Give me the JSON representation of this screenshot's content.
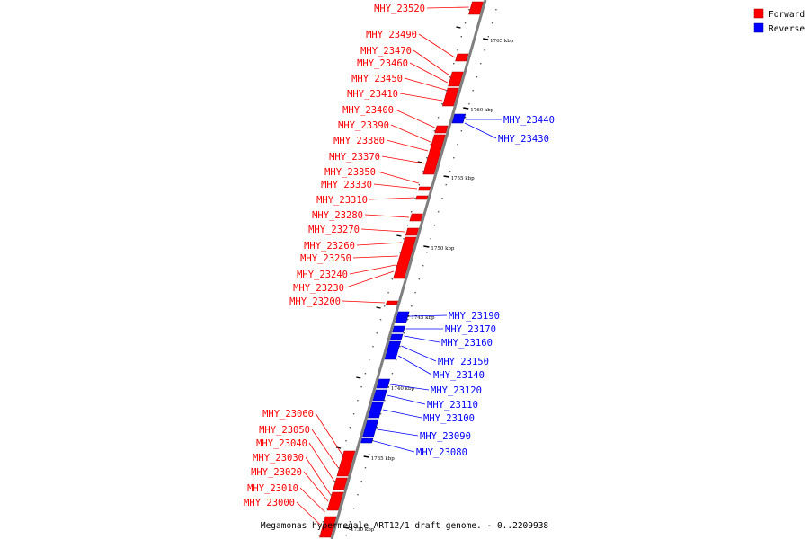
{
  "caption": "Megamonas hypermegale ART12/1 draft genome. - 0..2209938",
  "legend": [
    {
      "label": "Forward",
      "color": "#ff0000"
    },
    {
      "label": "Reverse",
      "color": "#0000ff"
    }
  ],
  "colors": {
    "forward": "#ff0000",
    "reverse": "#0000ff",
    "backbone": "#7f7f7f"
  },
  "ticks": [
    "1765 kbp",
    "1760 kbp",
    "1755 kbp",
    "1750 kbp",
    "1745 kbp",
    "1740 kbp",
    "1735 kbp",
    "1730 kbp"
  ],
  "forward_genes": [
    "MHY_23520",
    "MHY_23490",
    "MHY_23470",
    "MHY_23460",
    "MHY_23450",
    "MHY_23410",
    "MHY_23400",
    "MHY_23390",
    "MHY_23380",
    "MHY_23370",
    "MHY_23350",
    "MHY_23330",
    "MHY_23310",
    "MHY_23280",
    "MHY_23270",
    "MHY_23260",
    "MHY_23250",
    "MHY_23240",
    "MHY_23230",
    "MHY_23200",
    "MHY_23060",
    "MHY_23050",
    "MHY_23040",
    "MHY_23030",
    "MHY_23020",
    "MHY_23010",
    "MHY_23000"
  ],
  "reverse_genes": [
    "MHY_23440",
    "MHY_23430",
    "MHY_23190",
    "MHY_23170",
    "MHY_23160",
    "MHY_23150",
    "MHY_23140",
    "MHY_23120",
    "MHY_23110",
    "MHY_23100",
    "MHY_23090",
    "MHY_23080"
  ]
}
